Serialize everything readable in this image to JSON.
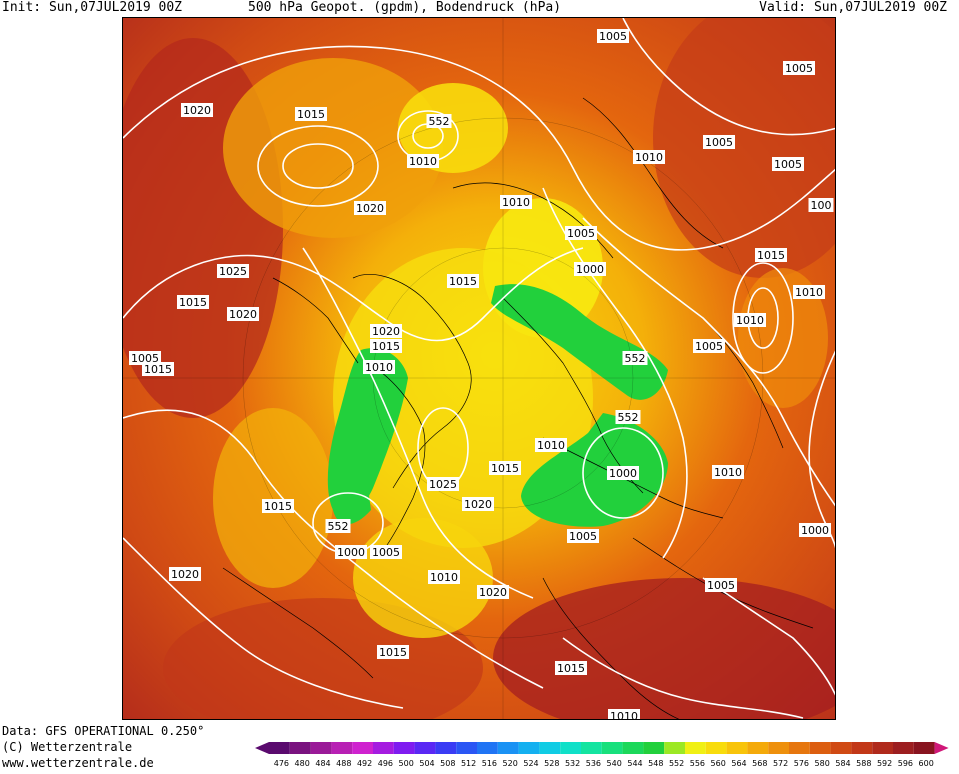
{
  "header": {
    "init": "Init: Sun,07JUL2019 00Z",
    "title": "500 hPa Geopot. (gpdm), Bodendruck (hPa)",
    "valid": "Valid: Sun,07JUL2019 00Z"
  },
  "footer": {
    "data_source": "Data: GFS OPERATIONAL 0.250°",
    "copyright": "(C) Wetterzentrale",
    "website": "www.wetterzentrale.de"
  },
  "legend": {
    "levels": [
      "476",
      "480",
      "484",
      "488",
      "492",
      "496",
      "500",
      "504",
      "508",
      "512",
      "516",
      "520",
      "524",
      "528",
      "532",
      "536",
      "540",
      "544",
      "548",
      "552",
      "556",
      "560",
      "564",
      "568",
      "572",
      "576",
      "580",
      "584",
      "588",
      "592",
      "596",
      "600"
    ],
    "colors": [
      "#5a0a6e",
      "#7a127f",
      "#9a1a98",
      "#b820b4",
      "#cf22cf",
      "#a51ce0",
      "#7f1cf0",
      "#5a28f4",
      "#3a3cf4",
      "#2a56f4",
      "#2074f4",
      "#1a92f4",
      "#14b0f0",
      "#10cce4",
      "#10e0c8",
      "#14e4a0",
      "#18e07c",
      "#1cd85a",
      "#22d03c",
      "#9ce824",
      "#f0f014",
      "#f8dc0c",
      "#f8c40a",
      "#f4aa0a",
      "#ee900c",
      "#e6760e",
      "#dc5e10",
      "#d04a14",
      "#c23818",
      "#b02a1c",
      "#9c1e20",
      "#88141f",
      "#d01878"
    ]
  },
  "pressure_labels": [
    {
      "text": "1005"
    },
    {
      "text": "1005"
    },
    {
      "text": "1020"
    },
    {
      "text": "1015"
    },
    {
      "text": "552"
    },
    {
      "text": "1010"
    },
    {
      "text": "1010"
    },
    {
      "text": "1005"
    },
    {
      "text": "1005"
    },
    {
      "text": "100"
    },
    {
      "text": "1020"
    },
    {
      "text": "1010"
    },
    {
      "text": "1005"
    },
    {
      "text": "1025"
    },
    {
      "text": "1000"
    },
    {
      "text": "1015"
    },
    {
      "text": "1015"
    },
    {
      "text": "1010"
    },
    {
      "text": "1015"
    },
    {
      "text": "1020"
    },
    {
      "text": "1010"
    },
    {
      "text": "1020"
    },
    {
      "text": "1005"
    },
    {
      "text": "1015"
    },
    {
      "text": "1010"
    },
    {
      "text": "552"
    },
    {
      "text": "1005"
    },
    {
      "text": "1015"
    },
    {
      "text": "552"
    },
    {
      "text": "1010"
    },
    {
      "text": "1015"
    },
    {
      "text": "1000"
    },
    {
      "text": "1010"
    },
    {
      "text": "1025"
    },
    {
      "text": "1015"
    },
    {
      "text": "1020"
    },
    {
      "text": "1000"
    },
    {
      "text": "552"
    },
    {
      "text": "1005"
    },
    {
      "text": "1000"
    },
    {
      "text": "1005"
    },
    {
      "text": "1020"
    },
    {
      "text": "1010"
    },
    {
      "text": "1005"
    },
    {
      "text": "1020"
    },
    {
      "text": "1015"
    },
    {
      "text": "1015"
    },
    {
      "text": "1010"
    }
  ]
}
